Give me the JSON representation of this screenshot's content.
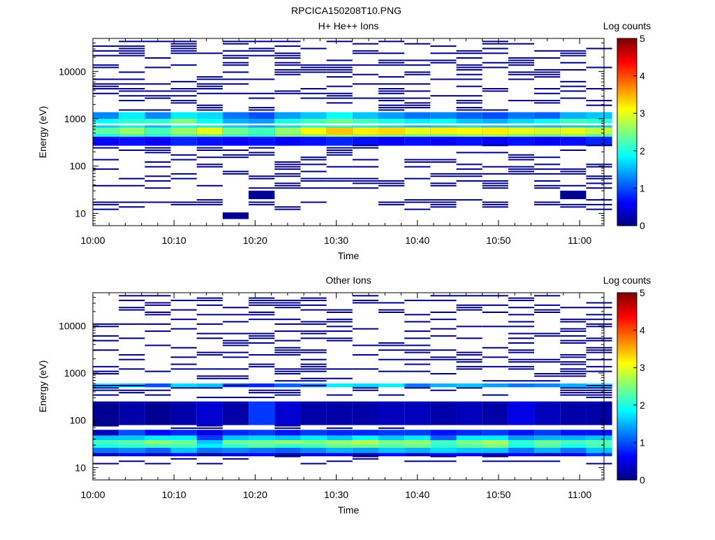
{
  "page_title": "RPCICA150208T10.PNG",
  "colormap": [
    "#00007f",
    "#0000ff",
    "#007fff",
    "#00ffff",
    "#7fff7f",
    "#ffff00",
    "#ff7f00",
    "#ff0000",
    "#7f0000"
  ],
  "chart_data": [
    {
      "type": "heatmap",
      "title": "H+ He++ Ions",
      "xlabel": "Time",
      "ylabel": "Energy (eV)",
      "x_ticks": [
        "10:00",
        "10:10",
        "10:20",
        "10:30",
        "10:40",
        "10:50",
        "11:00"
      ],
      "x_range_min": [
        0,
        63
      ],
      "y_ticks": [
        "10",
        "100",
        "1000",
        "10000"
      ],
      "y_scale": "log",
      "y_range": [
        5.5,
        50000
      ],
      "colorbar": {
        "label": "Log counts",
        "range": [
          0,
          5
        ],
        "ticks": [
          "0",
          "1",
          "2",
          "3",
          "4",
          "5"
        ]
      },
      "time_columns_min": [
        0,
        3.2,
        6.4,
        9.6,
        12.8,
        16,
        19.2,
        22.4,
        25.6,
        28.8,
        32,
        35.2,
        38.4,
        41.6,
        44.8,
        48,
        51.2,
        54.4,
        57.6,
        60.8
      ],
      "column_width_min": 3.2,
      "level_bins": [
        {
          "log_e": [
            2.43,
            2.86
          ],
          "values": [
            0.6,
            0.7,
            0.6,
            0.8,
            0.7,
            0.6,
            0.7,
            0.6,
            0.7,
            0.8,
            0.7,
            0.6,
            0.7,
            0.6,
            0.7,
            0.6,
            0.7,
            0.6,
            0.7,
            0.8
          ]
        },
        {
          "log_e": [
            2.62,
            2.67
          ],
          "values": [
            2.0,
            2.2,
            2.1,
            2.3,
            2.4,
            2.2,
            2.1,
            2.5,
            2.6,
            2.8,
            2.7,
            2.6,
            2.5,
            2.4,
            2.6,
            2.7,
            2.5,
            2.4,
            2.6,
            2.3
          ]
        },
        {
          "log_e": [
            2.67,
            2.82
          ],
          "values": [
            2.3,
            2.6,
            2.2,
            2.6,
            3.0,
            2.4,
            2.2,
            2.6,
            3.1,
            3.4,
            3.2,
            3.3,
            3.0,
            3.2,
            3.1,
            3.2,
            3.0,
            2.9,
            3.0,
            2.8
          ]
        },
        {
          "log_e": [
            2.82,
            2.86
          ],
          "values": [
            1.6,
            1.8,
            1.5,
            1.9,
            1.8,
            1.6,
            1.4,
            1.7,
            1.9,
            2.0,
            1.8,
            1.7,
            1.5,
            1.6,
            1.7,
            1.6,
            1.6,
            1.5,
            1.6,
            1.6
          ]
        },
        {
          "log_e": [
            2.86,
            2.9
          ],
          "values": [
            0,
            0,
            0,
            0,
            0,
            0,
            0,
            0,
            0,
            0,
            0,
            0,
            0,
            0,
            0,
            0,
            0,
            0,
            0,
            0
          ]
        },
        {
          "log_e": [
            2.9,
            3.0
          ],
          "values": [
            1.9,
            2.1,
            2.1,
            2.5,
            1.9,
            1.5,
            1.4,
            2.0,
            2.2,
            2.4,
            2.2,
            2.0,
            1.8,
            1.9,
            1.6,
            1.5,
            1.7,
            1.9,
            2.2,
            2.1
          ]
        },
        {
          "log_e": [
            3.0,
            3.14
          ],
          "values": [
            1.3,
            1.8,
            1.3,
            1.8,
            1.7,
            1.2,
            1.0,
            1.4,
            1.6,
            1.9,
            1.6,
            1.4,
            1.2,
            1.3,
            1.1,
            1.0,
            1.2,
            1.1,
            1.5,
            1.6
          ]
        },
        {
          "log_e": [
            0.88,
            1.02
          ],
          "values": [
            0,
            0,
            0,
            0,
            0,
            0.1,
            0,
            0,
            0,
            0,
            0,
            0,
            0,
            0,
            0,
            0,
            0,
            0,
            0,
            0
          ]
        },
        {
          "log_e": [
            1.3,
            1.48
          ],
          "values": [
            0,
            0,
            0,
            0,
            0,
            0,
            0.1,
            0,
            0,
            0,
            0,
            0,
            0,
            0,
            0,
            0,
            0,
            0,
            0.1,
            0
          ]
        }
      ],
      "sparse_fill": 0.35
    },
    {
      "type": "heatmap",
      "title": "Other Ions",
      "xlabel": "Time",
      "ylabel": "Energy (eV)",
      "x_ticks": [
        "10:00",
        "10:10",
        "10:20",
        "10:30",
        "10:40",
        "10:50",
        "11:00"
      ],
      "x_range_min": [
        0,
        63
      ],
      "y_ticks": [
        "10",
        "100",
        "1000",
        "10000"
      ],
      "y_scale": "log",
      "y_range": [
        5.5,
        50000
      ],
      "colorbar": {
        "label": "Log counts",
        "range": [
          0,
          5
        ],
        "ticks": [
          "0",
          "1",
          "2",
          "3",
          "4",
          "5"
        ]
      },
      "time_columns_min": [
        0,
        3.2,
        6.4,
        9.6,
        12.8,
        16,
        19.2,
        22.4,
        25.6,
        28.8,
        32,
        35.2,
        38.4,
        41.6,
        44.8,
        48,
        51.2,
        54.4,
        57.6,
        60.8
      ],
      "column_width_min": 3.2,
      "level_bins": [
        {
          "log_e": [
            1.24,
            1.31
          ],
          "values": [
            0.3,
            0.5,
            0.3,
            0.6,
            0.2,
            0.4,
            0.6,
            0.2,
            0.4,
            0.5,
            0.2,
            0.6,
            0.3,
            0.6,
            0.5,
            0.3,
            0.6,
            0.3,
            0.5,
            0.9
          ]
        },
        {
          "log_e": [
            1.31,
            1.42
          ],
          "values": [
            1.2,
            1.3,
            1.1,
            1.6,
            1.2,
            1.3,
            1.2,
            1.1,
            1.3,
            1.5,
            1.4,
            1.6,
            1.5,
            1.7,
            1.6,
            1.6,
            1.2,
            1.5,
            1.2,
            1.6
          ]
        },
        {
          "log_e": [
            1.42,
            1.5
          ],
          "values": [
            2.0,
            2.1,
            2.2,
            2.2,
            1.8,
            2.1,
            2.3,
            2.1,
            2.2,
            2.4,
            2.4,
            2.3,
            2.4,
            2.1,
            2.3,
            2.5,
            2.0,
            2.3,
            2.0,
            2.2
          ]
        },
        {
          "log_e": [
            1.5,
            1.58
          ],
          "values": [
            2.2,
            2.3,
            2.6,
            2.4,
            1.6,
            2.4,
            2.4,
            2.6,
            2.5,
            2.6,
            2.8,
            2.5,
            2.6,
            2.2,
            2.5,
            2.7,
            2.1,
            2.4,
            2.2,
            2.3
          ]
        },
        {
          "log_e": [
            1.58,
            1.68
          ],
          "values": [
            1.6,
            1.6,
            1.8,
            1.8,
            0.9,
            1.6,
            1.7,
            1.6,
            1.8,
            1.6,
            1.9,
            1.6,
            1.8,
            1.1,
            1.8,
            1.8,
            1.4,
            1.5,
            1.5,
            1.6
          ]
        },
        {
          "log_e": [
            1.68,
            1.8
          ],
          "values": [
            0.3,
            1.0,
            0.6,
            0.8,
            0.5,
            0.8,
            0.9,
            0.7,
            0.9,
            0.8,
            0.8,
            0.9,
            0.9,
            0.7,
            0.8,
            0.9,
            0.7,
            0.9,
            0.7,
            0.7
          ]
        },
        {
          "log_e": [
            2.7,
            2.78
          ],
          "values": [
            1.8,
            1.6,
            1.0,
            1.7,
            1.6,
            1.0,
            0.8,
            1.1,
            1.4,
            1.8,
            1.7,
            1.8,
            1.2,
            1.5,
            1.6,
            1.4,
            1.2,
            1.3,
            1.5,
            1.8
          ]
        },
        {
          "log_e": [
            1.9,
            2.4
          ],
          "values": [
            0.1,
            0.2,
            0.1,
            0.2,
            0.4,
            0.2,
            0.9,
            0.4,
            0.2,
            0.2,
            0.2,
            0.3,
            0.3,
            0.2,
            0.3,
            0.2,
            0.5,
            0.3,
            0.2,
            0.2
          ]
        },
        {
          "log_e": [
            0.88,
            1.02
          ],
          "values": [
            0,
            0,
            0,
            0,
            0,
            0,
            0,
            0,
            0,
            0,
            0,
            0,
            0,
            0,
            0,
            0,
            0,
            0,
            0,
            0
          ]
        }
      ],
      "sparse_fill": 0.3
    }
  ]
}
